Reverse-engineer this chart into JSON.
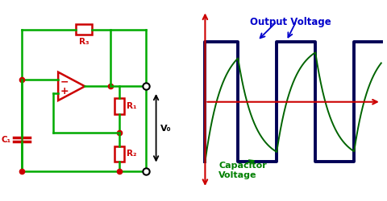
{
  "bg_color": "#ffffff",
  "circuit": {
    "green_color": "#00aa00",
    "red_color": "#cc0000",
    "line_width": 1.8,
    "dot_color": "#cc0000",
    "black_color": "#000000",
    "R3_label": "R₃",
    "R1_label": "R₁",
    "R2_label": "R₂",
    "C1_label": "C₁",
    "V0_label": "V₀"
  },
  "waveform": {
    "output_color": "#000055",
    "cap_color": "#006400",
    "axis_color": "#cc0000",
    "output_lw": 2.8,
    "cap_lw": 1.4,
    "axis_lw": 1.5,
    "output_label": "Output Voltage",
    "cap_label": "Capacitor\nVoltage",
    "label_color_out": "#0000cc",
    "label_color_cap": "#008000"
  }
}
